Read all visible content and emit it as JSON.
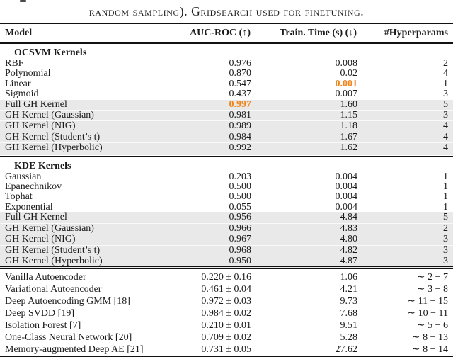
{
  "caption": "random sampling). Gridsearch used for finetuning.",
  "colors": {
    "highlight_orange": "#f0851a",
    "row_shade_gray": "#e9e9e9"
  },
  "header": {
    "model": "Model",
    "auc": "AUC-ROC (↑)",
    "time": "Train. Time (s) (↓)",
    "hyperparams": "#Hyperparams"
  },
  "sections": {
    "ocsvm": {
      "title": "OCSVM Kernels",
      "rows": [
        {
          "model": "RBF",
          "auc": "0.976",
          "time": "0.008",
          "hp": "2"
        },
        {
          "model": "Polynomial",
          "auc": "0.870",
          "time": "0.02",
          "hp": "4"
        },
        {
          "model": "Linear",
          "auc": "0.547",
          "time": "0.001",
          "hp": "1"
        },
        {
          "model": "Sigmoid",
          "auc": "0.437",
          "time": "0.007",
          "hp": "3"
        },
        {
          "model": "Full GH Kernel",
          "auc": "0.997",
          "time": "1.60",
          "hp": "5"
        },
        {
          "model": "GH Kernel (Gaussian)",
          "auc": "0.981",
          "time": "1.15",
          "hp": "3"
        },
        {
          "model": "GH Kernel (NIG)",
          "auc": "0.989",
          "time": "1.18",
          "hp": "4"
        },
        {
          "model": "GH Kernel (Student’s t)",
          "auc": "0.984",
          "time": "1.67",
          "hp": "4"
        },
        {
          "model": "GH Kernel (Hyperbolic)",
          "auc": "0.992",
          "time": "1.62",
          "hp": "4"
        }
      ]
    },
    "kde": {
      "title": "KDE Kernels",
      "rows": [
        {
          "model": "Gaussian",
          "auc": "0.203",
          "time": "0.004",
          "hp": "1"
        },
        {
          "model": "Epanechnikov",
          "auc": "0.500",
          "time": "0.004",
          "hp": "1"
        },
        {
          "model": "Tophat",
          "auc": "0.500",
          "time": "0.004",
          "hp": "1"
        },
        {
          "model": "Exponential",
          "auc": "0.055",
          "time": "0.004",
          "hp": "1"
        },
        {
          "model": "Full GH Kernel",
          "auc": "0.956",
          "time": "4.84",
          "hp": "5"
        },
        {
          "model": "GH Kernel (Gaussian)",
          "auc": "0.966",
          "time": "4.83",
          "hp": "2"
        },
        {
          "model": "GH Kernel (NIG)",
          "auc": "0.967",
          "time": "4.80",
          "hp": "3"
        },
        {
          "model": "GH Kernel (Student’s t)",
          "auc": "0.968",
          "time": "4.82",
          "hp": "3"
        },
        {
          "model": "GH Kernel (Hyperbolic)",
          "auc": "0.950",
          "time": "4.87",
          "hp": "3"
        }
      ]
    },
    "baselines": {
      "rows": [
        {
          "model": "Vanilla Autoencoder",
          "auc": "0.220 ± 0.16",
          "time": "1.06",
          "hp": "∼ 2 − 7"
        },
        {
          "model": "Variational Autoencoder",
          "auc": "0.461 ± 0.04",
          "time": "4.21",
          "hp": "∼ 3 − 8"
        },
        {
          "model": "Deep Autoencoding GMM [18]",
          "auc": "0.972 ± 0.03",
          "time": "9.73",
          "hp": "∼ 11 − 15"
        },
        {
          "model": "Deep SVDD [19]",
          "auc": "0.984 ± 0.02",
          "time": "7.68",
          "hp": "∼ 10 − 11"
        },
        {
          "model": "Isolation Forest [7]",
          "auc": "0.210 ± 0.01",
          "time": "9.51",
          "hp": "∼ 5 − 6"
        },
        {
          "model": "One-Class Neural Network [20]",
          "auc": "0.709 ± 0.02",
          "time": "5.28",
          "hp": "∼ 8 − 13"
        },
        {
          "model": "Memory-augmented Deep AE [21]",
          "auc": "0.731 ± 0.05",
          "time": "27.62",
          "hp": "∼ 8 − 14"
        }
      ]
    }
  }
}
